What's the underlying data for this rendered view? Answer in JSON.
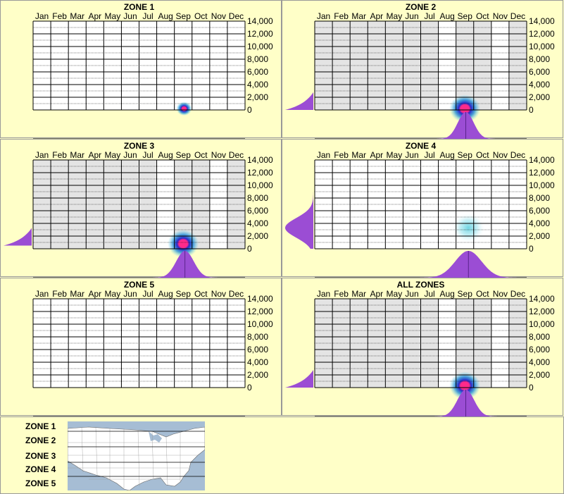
{
  "months": [
    "Jan",
    "Feb",
    "Mar",
    "Apr",
    "May",
    "Jun",
    "Jul",
    "Aug",
    "Sep",
    "Oct",
    "Nov",
    "Dec"
  ],
  "y_ticks": [
    "14,000",
    "12,000",
    "10,000",
    "8,000",
    "6,000",
    "4,000",
    "2,000",
    "0"
  ],
  "colors": {
    "background": "#ffffc8",
    "grid_active": "#e4e4e4",
    "dist": "#9b4dd4",
    "hot": "#ff2a8a",
    "cold": "#2a2ac8",
    "glow": "#66d6e8"
  },
  "chart_data": [
    {
      "type": "heatmap",
      "title": "ZONE 1",
      "xlabel": "",
      "ylabel": "",
      "ylim": [
        0,
        14000
      ],
      "active_months": [],
      "hotspot": {
        "month": 8.55,
        "elevation": 200,
        "intensity": "high",
        "spread": "small"
      },
      "left_dist": null,
      "bottom_dist": null
    },
    {
      "type": "heatmap",
      "title": "ZONE 2",
      "xlabel": "",
      "ylabel": "",
      "ylim": [
        0,
        14000
      ],
      "active_months": [
        0,
        1,
        2,
        3,
        4,
        5,
        6,
        8,
        9,
        11
      ],
      "hotspot": {
        "month": 8.5,
        "elevation": 200,
        "intensity": "high",
        "spread": "medium"
      },
      "left_dist": {
        "peak": 0,
        "shape": "low"
      },
      "bottom_dist": {
        "peak": 8.55,
        "spread": 0.45
      }
    },
    {
      "type": "heatmap",
      "title": "ZONE 3",
      "xlabel": "",
      "ylabel": "",
      "ylim": [
        0,
        14000
      ],
      "active_months": [
        0,
        1,
        2,
        3,
        4,
        5,
        6,
        8,
        9,
        11
      ],
      "hotspot": {
        "month": 8.5,
        "elevation": 800,
        "intensity": "high",
        "spread": "medium"
      },
      "left_dist": {
        "peak": 500,
        "shape": "low"
      },
      "bottom_dist": {
        "peak": 8.6,
        "spread": 0.5
      }
    },
    {
      "type": "heatmap",
      "title": "ZONE 4",
      "xlabel": "",
      "ylabel": "",
      "ylim": [
        0,
        14000
      ],
      "active_months": [],
      "hotspot": {
        "month": 8.7,
        "elevation": 3300,
        "intensity": "low",
        "spread": "large"
      },
      "left_dist": {
        "peak": 3300,
        "shape": "bell"
      },
      "bottom_dist": {
        "peak": 8.7,
        "spread": 0.75
      }
    },
    {
      "type": "heatmap",
      "title": "ZONE 5",
      "xlabel": "",
      "ylabel": "",
      "ylim": [
        0,
        14000
      ],
      "active_months": [],
      "hotspot": null,
      "left_dist": null,
      "bottom_dist": null
    },
    {
      "type": "heatmap",
      "title": "ALL ZONES",
      "xlabel": "",
      "ylabel": "",
      "ylim": [
        0,
        14000
      ],
      "active_months": [
        0,
        1,
        2,
        3,
        4,
        5,
        6,
        8,
        9,
        11
      ],
      "hotspot": {
        "month": 8.5,
        "elevation": 300,
        "intensity": "high",
        "spread": "medium"
      },
      "left_dist": {
        "peak": 0,
        "shape": "low"
      },
      "bottom_dist": {
        "peak": 8.55,
        "spread": 0.48
      }
    }
  ],
  "legend": {
    "zones": [
      "ZONE 1",
      "ZONE 2",
      "ZONE 3",
      "ZONE 4",
      "ZONE 5"
    ]
  }
}
